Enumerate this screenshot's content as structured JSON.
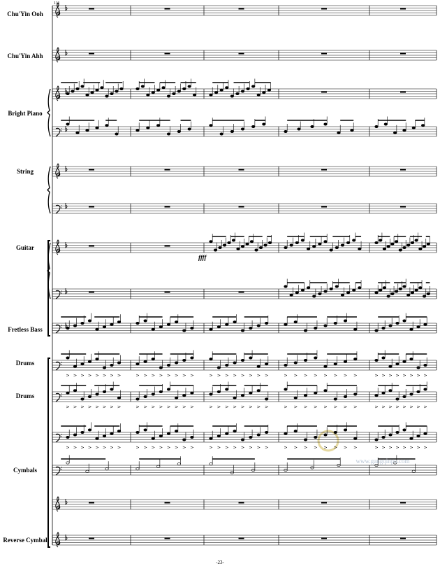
{
  "measure_number": "111",
  "staves": [
    {
      "label": "Chu'Yin Ooh"
    },
    {
      "label": "Chu'Yin Ahh"
    },
    {
      "label": "Bright Piano"
    },
    {
      "label": "String"
    },
    {
      "label": "Guitar"
    },
    {
      "label": "Fretless Bass"
    },
    {
      "label": "Drums"
    },
    {
      "label": "Drums"
    },
    {
      "label": "Cymbals"
    },
    {
      "label": "Reverse Cymbal"
    }
  ],
  "dynamics": [
    "ffff"
  ],
  "watermark": {
    "url": "www.gangqinpu.com"
  },
  "footer": {
    "page": "-23-"
  }
}
